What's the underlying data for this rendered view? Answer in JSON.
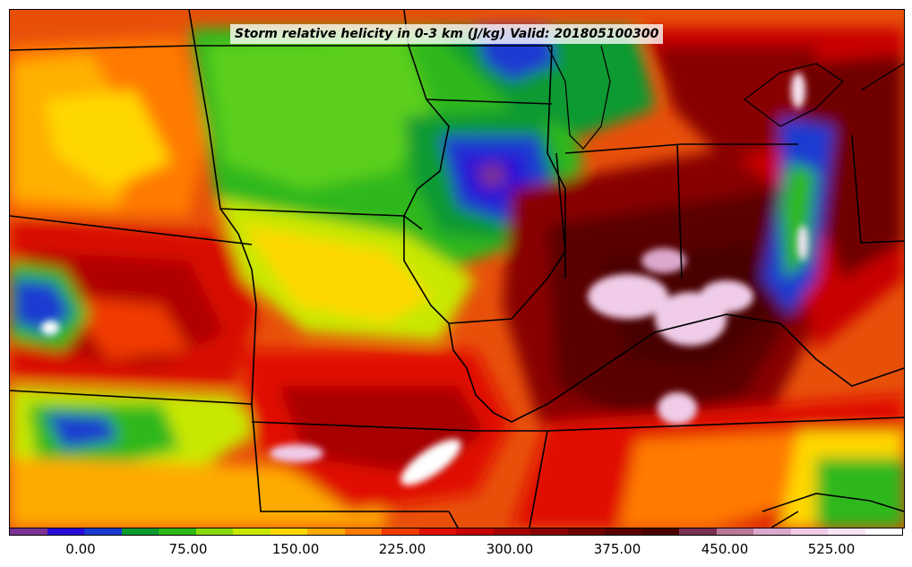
{
  "title": "Storm relative helicity in 0-3 km (J/kg) Valid: 201805100300",
  "colorbar": {
    "colors": [
      "#7b3294",
      "#2a0ad8",
      "#1a3ad0",
      "#0a9a30",
      "#2eb81a",
      "#8ad80a",
      "#c8e800",
      "#ffd700",
      "#ffaa00",
      "#ff7a00",
      "#f03a00",
      "#e01000",
      "#c80000",
      "#a80000",
      "#880000",
      "#700000",
      "#5a0000",
      "#4a0000",
      "#7a3050",
      "#b87898",
      "#dca8cc",
      "#f0cce8",
      "#f8e4f4",
      "#ffffff"
    ],
    "ticks": [
      "0.00",
      "75.00",
      "150.00",
      "225.00",
      "300.00",
      "375.00",
      "450.00",
      "525.00"
    ]
  },
  "map": {
    "background_color": "#c43a00",
    "high_color": "#5a0000",
    "low_color": "#2eb81a"
  }
}
